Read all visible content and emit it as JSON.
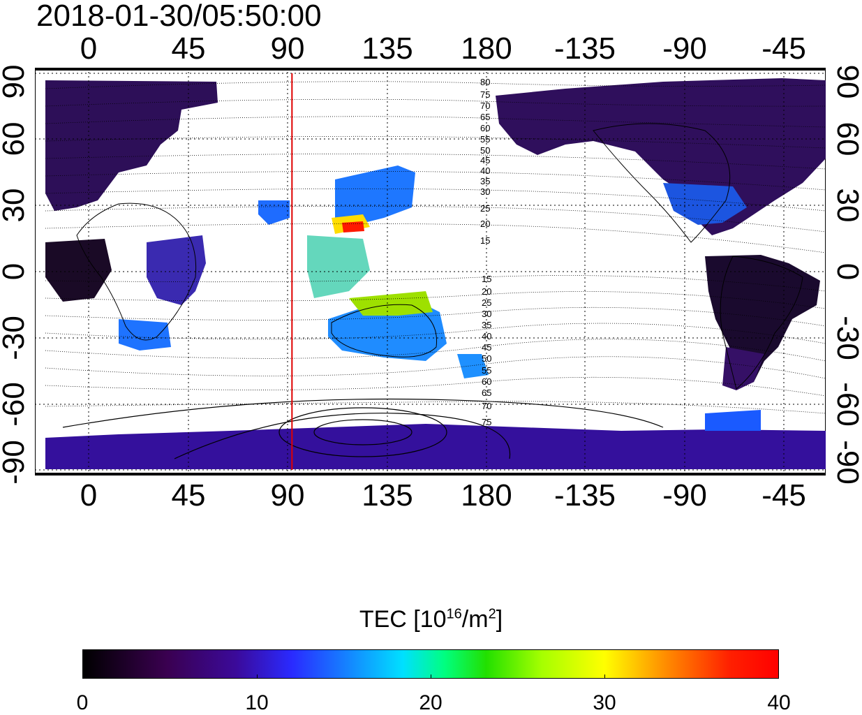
{
  "timestamp": "2018-01-30/05:50:00",
  "map": {
    "lon_ticks_top": [
      "0",
      "45",
      "90",
      "135",
      "180",
      "-135",
      "-90",
      "-45"
    ],
    "lon_ticks_bottom": [
      "0",
      "45",
      "90",
      "135",
      "180",
      "-135",
      "-90",
      "-45"
    ],
    "lat_ticks_left": [
      "90",
      "60",
      "30",
      "0",
      "-30",
      "-60",
      "-90"
    ],
    "lat_ticks_right": [
      "90",
      "60",
      "30",
      "0",
      "-30",
      "-60",
      "-90"
    ],
    "marker_longitude": 92,
    "marker_color": "#e00000",
    "contour_labels_north": [
      "80",
      "75",
      "70",
      "65",
      "60",
      "55",
      "50",
      "45",
      "40",
      "35",
      "30",
      "25",
      "20",
      "15"
    ],
    "contour_labels_south": [
      "15",
      "20",
      "25",
      "30",
      "35",
      "40",
      "45",
      "50",
      "55",
      "60",
      "65",
      "70",
      "75"
    ]
  },
  "colorbar": {
    "title": "TEC  [10",
    "title_sup": "16",
    "title_unit": "/m",
    "title_sup2": "2",
    "title_end": "]",
    "ticks": [
      "0",
      "10",
      "20",
      "30",
      "40"
    ],
    "min": 0,
    "max": 40,
    "colors": [
      "#000000",
      "#3a0050",
      "#3b0a9a",
      "#2a2aff",
      "#1a6cff",
      "#00e0ff",
      "#00ff80",
      "#22e000",
      "#a6ff00",
      "#ffff00",
      "#ff8a00",
      "#ff2000",
      "#ff0000"
    ]
  }
}
